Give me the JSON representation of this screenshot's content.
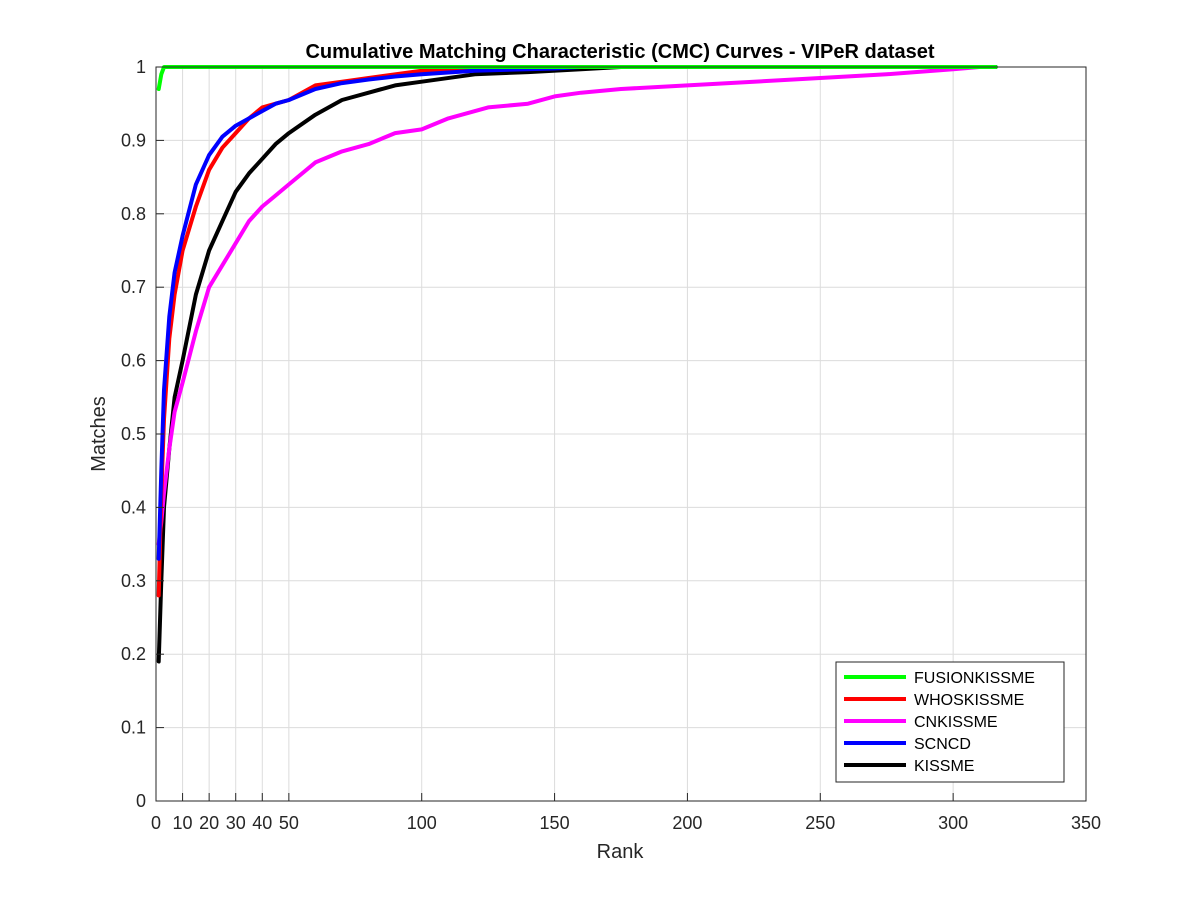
{
  "chart_data": {
    "type": "line",
    "title": "Cumulative Matching Characteristic (CMC) Curves - VIPeR dataset",
    "xlabel": "Rank",
    "ylabel": "Matches",
    "xlim": [
      0,
      350
    ],
    "ylim": [
      0,
      1
    ],
    "grid": true,
    "legend_position": "bottom-right",
    "x_ticks": [
      0,
      10,
      20,
      30,
      40,
      50,
      100,
      150,
      200,
      250,
      300,
      350
    ],
    "y_ticks": [
      0,
      0.1,
      0.2,
      0.3,
      0.4,
      0.5,
      0.6,
      0.7,
      0.8,
      0.9,
      1
    ],
    "x_tick_labels": [
      "0",
      "10",
      "20",
      "30",
      "40",
      "50",
      "100",
      "150",
      "200",
      "250",
      "300",
      "350"
    ],
    "y_tick_labels": [
      "0",
      "0.1",
      "0.2",
      "0.3",
      "0.4",
      "0.5",
      "0.6",
      "0.7",
      "0.8",
      "0.9",
      "1"
    ],
    "series": [
      {
        "name": "FUSIONKISSME",
        "color": "#00ff00",
        "x": [
          1,
          2,
          3,
          5,
          10,
          316
        ],
        "y": [
          0.97,
          0.99,
          1.0,
          1.0,
          1.0,
          1.0
        ]
      },
      {
        "name": "WHOSKISSME",
        "color": "#ff0000",
        "x": [
          1,
          2,
          3,
          5,
          7,
          10,
          15,
          20,
          25,
          30,
          35,
          40,
          45,
          50,
          60,
          70,
          80,
          90,
          100,
          120,
          150,
          175,
          200,
          250,
          300,
          316
        ],
        "y": [
          0.28,
          0.42,
          0.52,
          0.63,
          0.69,
          0.75,
          0.81,
          0.86,
          0.89,
          0.91,
          0.93,
          0.945,
          0.95,
          0.955,
          0.975,
          0.98,
          0.985,
          0.99,
          0.995,
          0.998,
          1.0,
          1.0,
          1.0,
          1.0,
          1.0,
          1.0
        ]
      },
      {
        "name": "CNKISSME",
        "color": "#ff00ff",
        "x": [
          1,
          2,
          3,
          5,
          7,
          10,
          15,
          20,
          25,
          30,
          35,
          40,
          45,
          50,
          60,
          70,
          80,
          90,
          100,
          110,
          125,
          140,
          150,
          160,
          175,
          200,
          225,
          250,
          275,
          300,
          310
        ],
        "y": [
          0.35,
          0.38,
          0.42,
          0.48,
          0.53,
          0.57,
          0.64,
          0.7,
          0.73,
          0.76,
          0.79,
          0.81,
          0.825,
          0.84,
          0.87,
          0.885,
          0.895,
          0.91,
          0.915,
          0.93,
          0.945,
          0.95,
          0.96,
          0.965,
          0.97,
          0.975,
          0.98,
          0.985,
          0.99,
          0.997,
          1.0
        ]
      },
      {
        "name": "SCNCD",
        "color": "#0000ff",
        "x": [
          1,
          2,
          3,
          5,
          7,
          10,
          15,
          20,
          25,
          30,
          35,
          40,
          45,
          50,
          60,
          70,
          80,
          90,
          100,
          120,
          150,
          160,
          175,
          200,
          250,
          316
        ],
        "y": [
          0.33,
          0.45,
          0.56,
          0.66,
          0.72,
          0.77,
          0.84,
          0.88,
          0.905,
          0.92,
          0.93,
          0.94,
          0.95,
          0.955,
          0.97,
          0.978,
          0.983,
          0.987,
          0.99,
          0.995,
          0.998,
          1.0,
          1.0,
          1.0,
          1.0,
          1.0
        ]
      },
      {
        "name": "KISSME",
        "color": "#000000",
        "x": [
          1,
          2,
          3,
          5,
          7,
          10,
          15,
          20,
          25,
          30,
          35,
          40,
          45,
          50,
          60,
          70,
          80,
          90,
          100,
          120,
          140,
          160,
          175,
          200,
          250,
          316
        ],
        "y": [
          0.19,
          0.3,
          0.4,
          0.48,
          0.55,
          0.6,
          0.69,
          0.75,
          0.79,
          0.83,
          0.855,
          0.875,
          0.895,
          0.91,
          0.935,
          0.955,
          0.965,
          0.975,
          0.98,
          0.99,
          0.993,
          0.997,
          1.0,
          1.0,
          1.0,
          1.0
        ]
      }
    ]
  }
}
